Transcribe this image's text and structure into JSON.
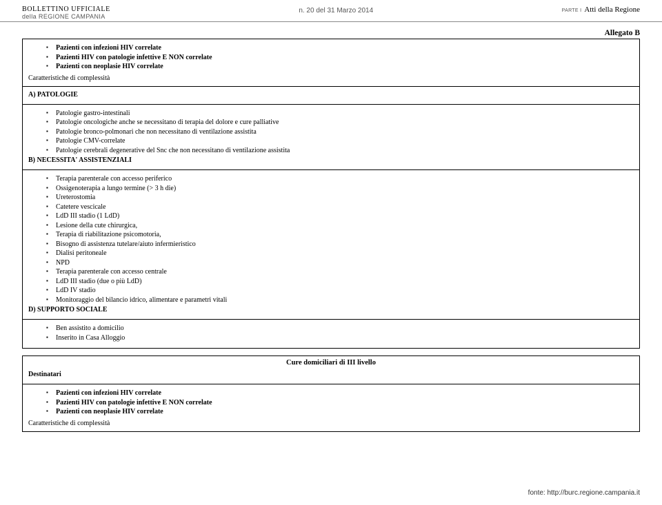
{
  "header": {
    "left_line1": "BOLLETTINO UFFICIALE",
    "left_line2": "della REGIONE CAMPANIA",
    "center": "n. 20 del  31 Marzo 2014",
    "right_parte": "PARTE I",
    "right_atti": "Atti della Regione"
  },
  "allegato": "Allegato B",
  "block1": {
    "patients": [
      "Pazienti con infezioni HIV correlate",
      "Pazienti HIV con patologie infettive E NON  correlate",
      "Pazienti con neoplasie HIV correlate"
    ],
    "row_label": "Caratteristiche di complessità"
  },
  "sectionA": {
    "label": "A) PATOLOGIE",
    "items": [
      "Patologie gastro-intestinali",
      "Patologie oncologiche anche se necessitano di terapia del dolore e cure palliative",
      "Patologie bronco-polmonari  che non necessitano di ventilazione assistita",
      "Patologie CMV-correlate",
      "Patologie cerebrali degenerative del Snc che non necessitano di ventilazione assistita"
    ]
  },
  "sectionB": {
    "label": "B) NECESSITA' ASSISTENZIALI",
    "items": [
      "Terapia parenterale con accesso periferico",
      "Ossigenoterapia a lungo termine (> 3 h die)",
      "Ureterostomia",
      "Catetere vescicale",
      "LdD III stadio (1 LdD)",
      "Lesione della cute chirurgica,",
      "Terapia di riabilitazione psicomotoria,",
      "Bisogno di assistenza tutelare/aiuto infermieristico",
      "Dialisi peritoneale",
      "NPD",
      "Terapia parenterale con accesso centrale",
      "LdD III stadio (due o più LdD)",
      "LdD IV stadio",
      "Monitoraggio del bilancio idrico, alimentare e parametri vitali"
    ]
  },
  "sectionD": {
    "label": "D) SUPPORTO SOCIALE",
    "items": [
      "Ben assistito a domicilio",
      "Inserito in Casa Alloggio"
    ]
  },
  "block2": {
    "title": "Cure domiciliari di III livello",
    "destinatari_label": "Destinatari",
    "patients": [
      "Pazienti con infezioni HIV correlate",
      "Pazienti HIV con patologie infettive E NON  correlate",
      "Pazienti con neoplasie HIV correlate"
    ],
    "row_label": "Caratteristiche di complessità"
  },
  "footer": "fonte: http://burc.regione.campania.it"
}
